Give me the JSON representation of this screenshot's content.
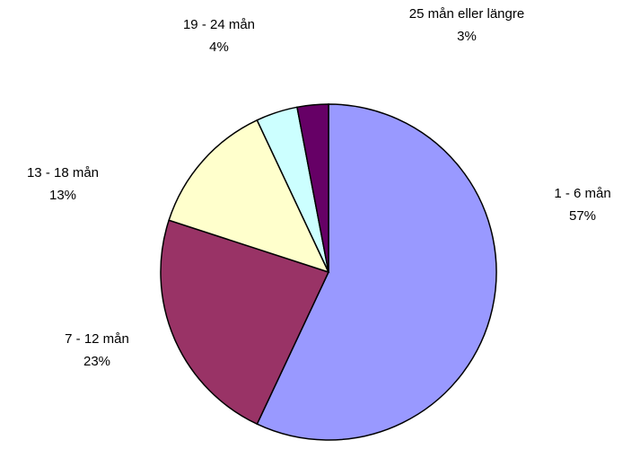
{
  "chart_data": {
    "type": "pie",
    "categories": [
      "1 - 6 mån",
      "7 - 12 mån",
      "13 - 18 mån",
      "19 - 24 mån",
      "25 mån eller längre"
    ],
    "values": [
      57,
      23,
      13,
      4,
      3
    ],
    "value_labels": [
      "57%",
      "23%",
      "13%",
      "4%",
      "3%"
    ],
    "colors": [
      "#9999ff",
      "#993366",
      "#ffffcc",
      "#ccffff",
      "#660066"
    ]
  }
}
